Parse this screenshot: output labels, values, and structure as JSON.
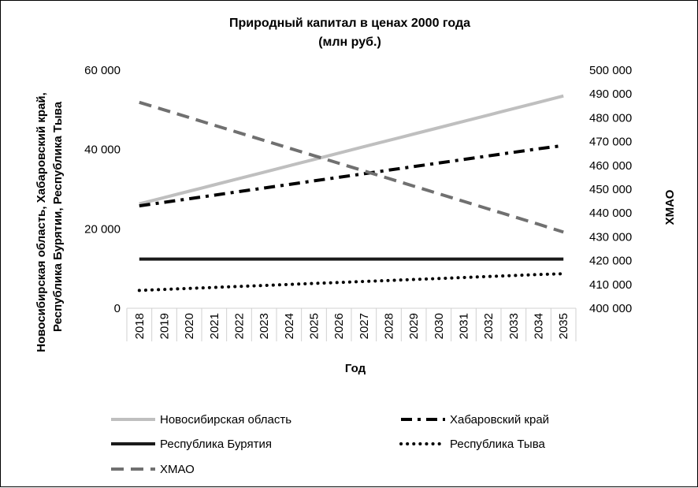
{
  "chart_data": {
    "type": "line",
    "title_line1": "Природный капитал в ценах 2000 года",
    "title_line2": "(млн руб.)",
    "xlabel": "Год",
    "ylabel_line1": "Новосибирская область, Хабаровский край,",
    "ylabel_line2": "Республика Бурятии, Республика Тыва",
    "y2label": "ХМАО",
    "categories": [
      "2018",
      "2019",
      "2020",
      "2021",
      "2022",
      "2023",
      "2024",
      "2025",
      "2026",
      "2027",
      "2028",
      "2029",
      "2030",
      "2031",
      "2032",
      "2033",
      "2034",
      "2035"
    ],
    "ylim": [
      0,
      60000
    ],
    "y2lim": [
      400000,
      500000
    ],
    "y_ticks": [
      "0",
      "20 000",
      "40 000",
      "60 000"
    ],
    "y_tick_values": [
      0,
      20000,
      40000,
      60000
    ],
    "y2_ticks": [
      "400 000",
      "410 000",
      "420 000",
      "430 000",
      "440 000",
      "450 000",
      "460 000",
      "470 000",
      "480 000",
      "490 000",
      "500 000"
    ],
    "y2_tick_values": [
      400000,
      410000,
      420000,
      430000,
      440000,
      450000,
      460000,
      470000,
      480000,
      490000,
      500000
    ],
    "series": [
      {
        "name": "Новосибирская область",
        "axis": "left",
        "style": "solid",
        "color": "#bfbfbf",
        "values": [
          26300,
          27900,
          29500,
          31100,
          32700,
          34300,
          35900,
          37500,
          39100,
          40700,
          42300,
          43900,
          45500,
          47100,
          48700,
          50300,
          51900,
          53500
        ]
      },
      {
        "name": "Хабаровский край",
        "axis": "left",
        "style": "dashdot",
        "color": "#000000",
        "values": [
          25800,
          26700,
          27600,
          28500,
          29400,
          30300,
          31200,
          32100,
          33000,
          33900,
          34800,
          35700,
          36600,
          37500,
          38400,
          39300,
          40200,
          41000
        ]
      },
      {
        "name": "Республика Бурятия",
        "axis": "left",
        "style": "solid",
        "color": "#1a1a1a",
        "values": [
          12400,
          12400,
          12400,
          12400,
          12400,
          12400,
          12400,
          12400,
          12400,
          12400,
          12400,
          12400,
          12400,
          12400,
          12400,
          12400,
          12400,
          12400
        ]
      },
      {
        "name": "Республика Тыва",
        "axis": "left",
        "style": "dotted",
        "color": "#000000",
        "values": [
          4500,
          4750,
          5000,
          5250,
          5500,
          5750,
          6000,
          6250,
          6500,
          6750,
          7000,
          7250,
          7500,
          7750,
          8000,
          8250,
          8500,
          8700
        ]
      },
      {
        "name": "ХМАО",
        "axis": "right",
        "style": "dashed",
        "color": "#707070",
        "values": [
          486500,
          483300,
          480100,
          476900,
          473700,
          470500,
          467300,
          464100,
          460900,
          457700,
          454500,
          451300,
          448100,
          444900,
          441700,
          438500,
          435300,
          432000
        ]
      }
    ],
    "legend": {
      "position": "bottom",
      "rows": [
        [
          "Новосибирская область",
          "Хабаровский край"
        ],
        [
          "Республика Бурятия",
          "Республика Тыва"
        ],
        [
          "ХМАО"
        ]
      ]
    }
  }
}
